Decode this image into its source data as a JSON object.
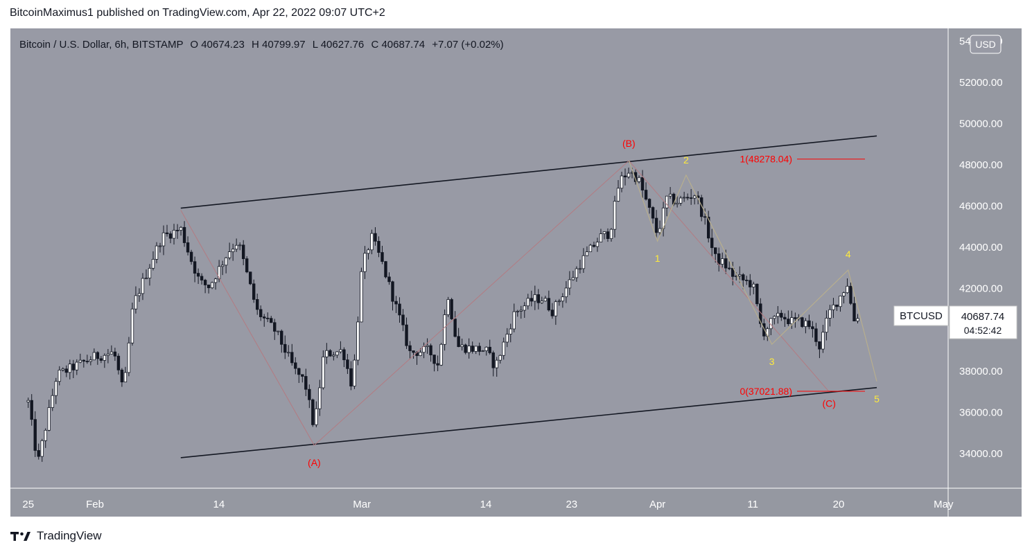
{
  "header": {
    "published": "BitcoinMaximus1 published on TradingView.com, Apr 22, 2022 09:07 UTC+2"
  },
  "legend": {
    "symbol": "Bitcoin / U.S. Dollar, 6h, BITSTAMP",
    "open_label": "O",
    "open": "40674.23",
    "high_label": "H",
    "high": "40799.97",
    "low_label": "L",
    "low": "40627.76",
    "close_label": "C",
    "close": "40687.74",
    "change": "+7.07 (+0.02%)"
  },
  "currency_button": "USD",
  "price_tag": {
    "symbol": "BTCUSD",
    "price": "40687.74",
    "countdown": "04:52:42"
  },
  "footer": {
    "brand": "TradingView"
  },
  "colors": {
    "chart_bg": "#989aa5",
    "frame": "#9598a1",
    "candle": "#131722",
    "fib": "#ff0000",
    "wave_red": "#ff0000",
    "wave_yellow": "#ffeb3b",
    "yellow_wave_line": "#b7ae8e",
    "red_wave_line": "#b37b82",
    "channel": "#131722"
  },
  "chart_data": {
    "type": "candlestick",
    "symbol": "BTCUSD",
    "timeframe": "6h",
    "ylim": [
      33000,
      55000
    ],
    "x_range": [
      "2022-01-25",
      "2022-05-01"
    ],
    "y_ticks": [
      "54000.00",
      "52000.00",
      "50000.00",
      "48000.00",
      "46000.00",
      "44000.00",
      "42000.00",
      "40000.00",
      "38000.00",
      "36000.00",
      "34000.00"
    ],
    "x_ticks": [
      {
        "date": "2022-01-25",
        "label": "25"
      },
      {
        "date": "2022-02-01",
        "label": "Feb"
      },
      {
        "date": "2022-02-14",
        "label": "14"
      },
      {
        "date": "2022-03-01",
        "label": "Mar"
      },
      {
        "date": "2022-03-14",
        "label": "14"
      },
      {
        "date": "2022-03-23",
        "label": "23"
      },
      {
        "date": "2022-04-01",
        "label": "Apr"
      },
      {
        "date": "2022-04-11",
        "label": "11"
      },
      {
        "date": "2022-04-20",
        "label": "20"
      },
      {
        "date": "2022-05-01",
        "label": "May"
      }
    ],
    "candle_count": 240,
    "price_path": [
      {
        "date": "2022-01-25",
        "price": 36500
      },
      {
        "date": "2022-01-26",
        "price": 33500
      },
      {
        "date": "2022-01-28",
        "price": 37800
      },
      {
        "date": "2022-02-01",
        "price": 38700
      },
      {
        "date": "2022-02-03",
        "price": 38900
      },
      {
        "date": "2022-02-04",
        "price": 36900
      },
      {
        "date": "2022-02-05",
        "price": 41200
      },
      {
        "date": "2022-02-08",
        "price": 44500
      },
      {
        "date": "2022-02-10",
        "price": 44900
      },
      {
        "date": "2022-02-11",
        "price": 43500
      },
      {
        "date": "2022-02-12",
        "price": 42300
      },
      {
        "date": "2022-02-13",
        "price": 42100
      },
      {
        "date": "2022-02-15",
        "price": 43800
      },
      {
        "date": "2022-02-16",
        "price": 44300
      },
      {
        "date": "2022-02-18",
        "price": 40900
      },
      {
        "date": "2022-02-20",
        "price": 39900
      },
      {
        "date": "2022-02-22",
        "price": 38000
      },
      {
        "date": "2022-02-23",
        "price": 37500
      },
      {
        "date": "2022-02-24",
        "price": 35200
      },
      {
        "date": "2022-02-25",
        "price": 38800
      },
      {
        "date": "2022-02-27",
        "price": 39000
      },
      {
        "date": "2022-02-28",
        "price": 37200
      },
      {
        "date": "2022-03-01",
        "price": 43000
      },
      {
        "date": "2022-03-02",
        "price": 44500
      },
      {
        "date": "2022-03-03",
        "price": 43400
      },
      {
        "date": "2022-03-05",
        "price": 40500
      },
      {
        "date": "2022-03-06",
        "price": 38900
      },
      {
        "date": "2022-03-08",
        "price": 39000
      },
      {
        "date": "2022-03-09",
        "price": 38300
      },
      {
        "date": "2022-03-10",
        "price": 41800
      },
      {
        "date": "2022-03-11",
        "price": 39200
      },
      {
        "date": "2022-03-14",
        "price": 39000
      },
      {
        "date": "2022-03-15",
        "price": 38200
      },
      {
        "date": "2022-03-17",
        "price": 40800
      },
      {
        "date": "2022-03-19",
        "price": 41500
      },
      {
        "date": "2022-03-20",
        "price": 41500
      },
      {
        "date": "2022-03-21",
        "price": 40900
      },
      {
        "date": "2022-03-23",
        "price": 42500
      },
      {
        "date": "2022-03-24",
        "price": 43300
      },
      {
        "date": "2022-03-26",
        "price": 44500
      },
      {
        "date": "2022-03-27",
        "price": 44700
      },
      {
        "date": "2022-03-28",
        "price": 47200
      },
      {
        "date": "2022-03-29",
        "price": 47700
      },
      {
        "date": "2022-03-30",
        "price": 47300
      },
      {
        "date": "2022-03-31",
        "price": 46000
      },
      {
        "date": "2022-04-01",
        "price": 44600
      },
      {
        "date": "2022-04-02",
        "price": 46400
      },
      {
        "date": "2022-04-03",
        "price": 46200
      },
      {
        "date": "2022-04-04",
        "price": 46400
      },
      {
        "date": "2022-04-05",
        "price": 46600
      },
      {
        "date": "2022-04-06",
        "price": 45200
      },
      {
        "date": "2022-04-07",
        "price": 43500
      },
      {
        "date": "2022-04-08",
        "price": 43200
      },
      {
        "date": "2022-04-09",
        "price": 42600
      },
      {
        "date": "2022-04-10",
        "price": 42400
      },
      {
        "date": "2022-04-11",
        "price": 42200
      },
      {
        "date": "2022-04-12",
        "price": 39800
      },
      {
        "date": "2022-04-13",
        "price": 40400
      },
      {
        "date": "2022-04-14",
        "price": 40700
      },
      {
        "date": "2022-04-15",
        "price": 40400
      },
      {
        "date": "2022-04-16",
        "price": 40400
      },
      {
        "date": "2022-04-17",
        "price": 40200
      },
      {
        "date": "2022-04-18",
        "price": 39200
      },
      {
        "date": "2022-04-19",
        "price": 40800
      },
      {
        "date": "2022-04-20",
        "price": 41500
      },
      {
        "date": "2022-04-21",
        "price": 42300
      },
      {
        "date": "2022-04-21T12:00",
        "price": 40400
      },
      {
        "date": "2022-04-22",
        "price": 40688
      }
    ],
    "channel": [
      {
        "name": "upper",
        "from": {
          "date": "2022-02-10",
          "price": 45900
        },
        "to": {
          "date": "2022-04-24",
          "price": 49400
        }
      },
      {
        "name": "lower",
        "from": {
          "date": "2022-02-10",
          "price": 33800
        },
        "to": {
          "date": "2022-04-24",
          "price": 37200
        }
      }
    ],
    "fib_levels": [
      {
        "label": "1(48278.04)",
        "price": 48278.04
      },
      {
        "label": "0(37021.88)",
        "price": 37021.88
      }
    ],
    "red_wave": [
      {
        "label": "",
        "date": "2022-02-10",
        "price": 45800
      },
      {
        "label": "(A)",
        "date": "2022-02-24",
        "price": 34400
      },
      {
        "label": "(B)",
        "date": "2022-03-29",
        "price": 48200
      },
      {
        "label": "(C)",
        "date": "2022-04-19",
        "price": 37000
      }
    ],
    "yellow_wave": [
      {
        "label": "",
        "date": "2022-03-29",
        "price": 48200
      },
      {
        "label": "1",
        "date": "2022-04-01",
        "price": 44300
      },
      {
        "label": "2",
        "date": "2022-04-04",
        "price": 47500
      },
      {
        "label": "3",
        "date": "2022-04-13",
        "price": 39300
      },
      {
        "label": "4",
        "date": "2022-04-21",
        "price": 42900
      },
      {
        "label": "5",
        "date": "2022-04-24",
        "price": 37500
      }
    ]
  }
}
